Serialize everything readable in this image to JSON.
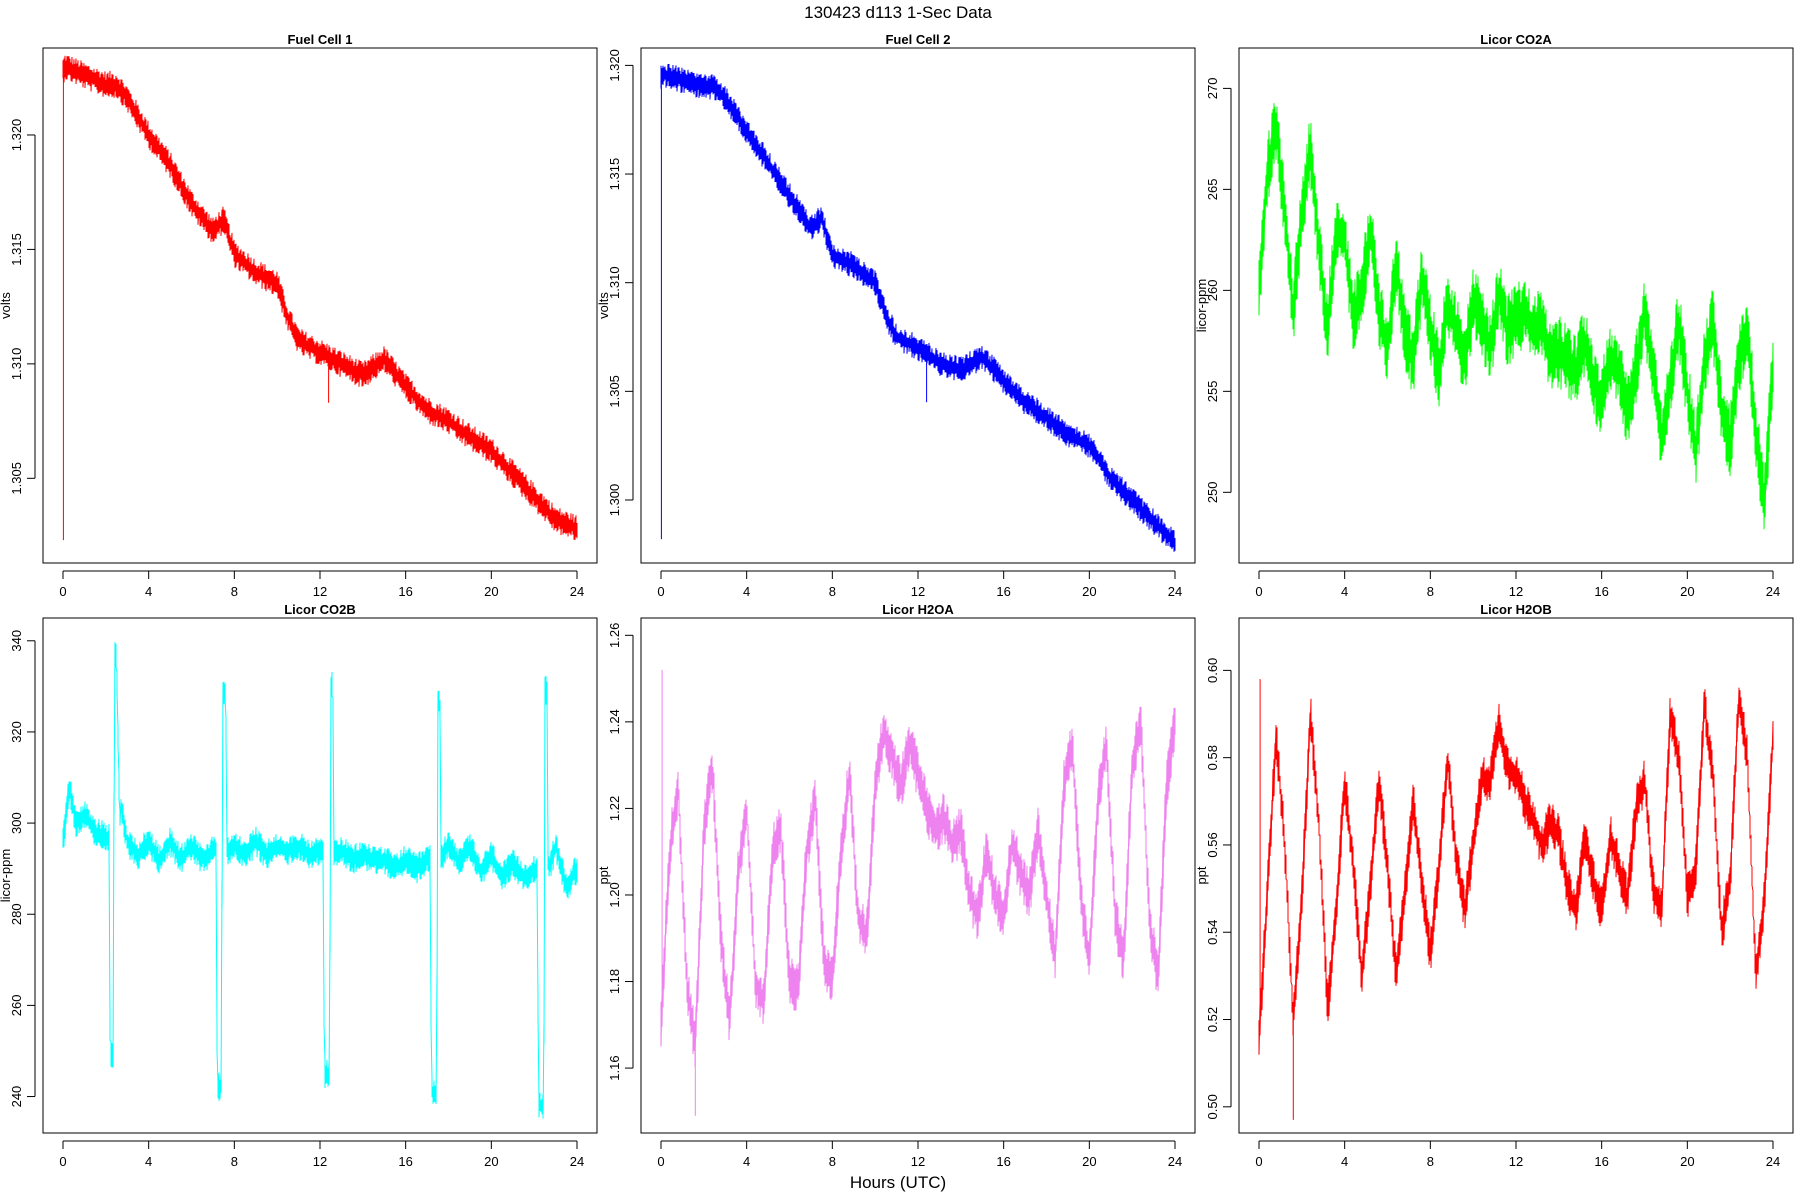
{
  "figure": {
    "title": "130423   d113   1-Sec Data",
    "xlabel": "Hours (UTC)"
  },
  "chart_data": [
    {
      "type": "line",
      "title": "Fuel Cell 1",
      "ylabel": "volts",
      "color": "#ff0000",
      "xlim": [
        0,
        24
      ],
      "ylim": [
        1.3013,
        1.3238
      ],
      "xticks": [
        0,
        4,
        8,
        12,
        16,
        20,
        24
      ],
      "yticks": [
        1.305,
        1.31,
        1.315,
        1.32
      ],
      "ytick_labels": [
        "1.305",
        "1.310",
        "1.315",
        "1.320"
      ],
      "noise": 0.0004,
      "spikes": [
        {
          "x": 0.02,
          "y": 1.3023
        },
        {
          "x": 12.4,
          "y": 1.3083
        }
      ],
      "x": [
        0,
        0.1,
        1,
        2,
        2.5,
        3,
        4,
        5,
        6,
        7,
        7.5,
        8,
        9,
        10,
        10.5,
        11,
        12,
        13,
        14,
        15,
        16,
        17,
        18,
        19,
        20,
        21,
        22,
        23,
        24
      ],
      "y": [
        1.3228,
        1.323,
        1.3226,
        1.3222,
        1.3222,
        1.3216,
        1.32,
        1.3187,
        1.317,
        1.3158,
        1.3163,
        1.3148,
        1.314,
        1.3135,
        1.312,
        1.311,
        1.3105,
        1.31,
        1.3095,
        1.3102,
        1.309,
        1.308,
        1.3075,
        1.3068,
        1.3062,
        1.3052,
        1.3042,
        1.3032,
        1.3028
      ]
    },
    {
      "type": "line",
      "title": "Fuel Cell 2",
      "ylabel": "volts",
      "color": "#0000ff",
      "xlim": [
        0,
        24
      ],
      "ylim": [
        1.2971,
        1.3208
      ],
      "xticks": [
        0,
        4,
        8,
        12,
        16,
        20,
        24
      ],
      "yticks": [
        1.3,
        1.305,
        1.31,
        1.315,
        1.32
      ],
      "ytick_labels": [
        "1.300",
        "1.305",
        "1.310",
        "1.315",
        "1.320"
      ],
      "noise": 0.0004,
      "spikes": [
        {
          "x": 0.02,
          "y": 1.2982
        },
        {
          "x": 12.4,
          "y": 1.3045
        }
      ],
      "x": [
        0,
        0.1,
        1,
        2,
        2.5,
        3,
        4,
        5,
        6,
        7,
        7.5,
        8,
        9,
        10,
        10.5,
        11,
        12,
        13,
        14,
        15,
        16,
        17,
        18,
        19,
        20,
        20.5,
        21,
        22,
        23,
        24
      ],
      "y": [
        1.3195,
        1.3196,
        1.3193,
        1.319,
        1.319,
        1.3185,
        1.317,
        1.3155,
        1.314,
        1.3125,
        1.313,
        1.3112,
        1.3108,
        1.31,
        1.3085,
        1.3075,
        1.307,
        1.3063,
        1.306,
        1.3066,
        1.3055,
        1.3045,
        1.3038,
        1.303,
        1.3025,
        1.3018,
        1.301,
        1.3,
        1.299,
        1.298
      ]
    },
    {
      "type": "line",
      "title": "Licor CO2A",
      "ylabel": "licor-ppm",
      "color": "#00ff00",
      "xlim": [
        0,
        24
      ],
      "ylim": [
        246.5,
        272.0
      ],
      "xticks": [
        0,
        4,
        8,
        12,
        16,
        20,
        24
      ],
      "yticks": [
        250,
        255,
        260,
        265,
        270
      ],
      "ytick_labels": [
        "250",
        "255",
        "260",
        "265",
        "270"
      ],
      "noise": 1.2,
      "spikes": [],
      "x": [
        0.0,
        0.4,
        0.8,
        1.2,
        1.6,
        2.0,
        2.4,
        2.8,
        3.2,
        3.6,
        4.0,
        4.4,
        4.8,
        5.2,
        5.6,
        6.0,
        6.4,
        6.8,
        7.2,
        7.6,
        8.0,
        8.4,
        8.8,
        9.2,
        9.6,
        10.0,
        10.4,
        10.8,
        11.2,
        11.6,
        12.0,
        12.4,
        12.8,
        13.2,
        13.6,
        14.0,
        14.4,
        14.8,
        15.2,
        15.6,
        16.0,
        16.4,
        16.8,
        17.2,
        17.6,
        18.0,
        18.4,
        18.8,
        19.2,
        19.6,
        20.0,
        20.4,
        20.8,
        21.2,
        21.6,
        22.0,
        22.4,
        22.8,
        23.2,
        23.6,
        24.0
      ],
      "y": [
        260.0,
        266.0,
        268.0,
        264.0,
        259.0,
        264.0,
        267.0,
        262.0,
        258.0,
        263.0,
        262.5,
        258.5,
        260.0,
        263.0,
        259.0,
        257.0,
        261.5,
        258.0,
        256.5,
        260.5,
        258.0,
        256.0,
        259.5,
        258.0,
        256.5,
        259.5,
        258.5,
        257.0,
        260.0,
        258.0,
        258.5,
        259.0,
        258.0,
        258.5,
        256.5,
        257.0,
        256.5,
        256.0,
        257.5,
        255.5,
        254.5,
        256.5,
        256.0,
        254.0,
        256.0,
        259.0,
        256.0,
        252.5,
        255.5,
        258.5,
        255.0,
        252.0,
        256.5,
        258.5,
        254.0,
        252.5,
        256.5,
        258.0,
        253.0,
        249.5,
        256.5
      ]
    },
    {
      "type": "line",
      "title": "Licor CO2B",
      "ylabel": "licor-ppm",
      "color": "#00ffff",
      "xlim": [
        0,
        24
      ],
      "ylim": [
        232.0,
        345.0
      ],
      "xticks": [
        0,
        4,
        8,
        12,
        16,
        20,
        24
      ],
      "yticks": [
        240,
        260,
        280,
        300,
        320,
        340
      ],
      "ytick_labels": [
        "240",
        "260",
        "280",
        "300",
        "320",
        "340"
      ],
      "noise": 2.2,
      "spikes": [],
      "x": [
        0.0,
        0.3,
        0.6,
        1.0,
        1.5,
        2.0,
        2.15,
        2.2,
        2.35,
        2.4,
        2.5,
        2.65,
        2.7,
        3.0,
        3.5,
        4.0,
        4.5,
        5.0,
        5.5,
        6.0,
        6.5,
        7.0,
        7.15,
        7.2,
        7.4,
        7.45,
        7.6,
        7.65,
        8.0,
        8.5,
        9.0,
        9.5,
        10.0,
        10.5,
        11.0,
        11.5,
        12.0,
        12.15,
        12.2,
        12.45,
        12.5,
        12.6,
        12.65,
        13.0,
        13.5,
        14.0,
        14.5,
        15.0,
        15.5,
        16.0,
        16.5,
        17.0,
        17.15,
        17.2,
        17.45,
        17.5,
        17.6,
        17.65,
        18.0,
        18.5,
        19.0,
        19.5,
        20.0,
        20.5,
        21.0,
        21.5,
        22.0,
        22.15,
        22.2,
        22.45,
        22.5,
        22.6,
        22.65,
        23.0,
        23.5,
        24.0
      ],
      "y": [
        296,
        308,
        300,
        302,
        298,
        297,
        297,
        249,
        249,
        337,
        336,
        300,
        304,
        296,
        293,
        296,
        292,
        296,
        292,
        295,
        292,
        294,
        294,
        242,
        242,
        329,
        329,
        294,
        295,
        293,
        296,
        293,
        295,
        294,
        295,
        293,
        294,
        294,
        245,
        245,
        330,
        330,
        293,
        294,
        292,
        293,
        292,
        292,
        290,
        292,
        290,
        292,
        292,
        241,
        241,
        327,
        327,
        292,
        296,
        291,
        295,
        289,
        293,
        288,
        291,
        288,
        290,
        290,
        238,
        238,
        329,
        329,
        289,
        295,
        286,
        290
      ]
    },
    {
      "type": "line",
      "title": "Licor H2OA",
      "ylabel": "ppt",
      "color": "#ee82ee",
      "xlim": [
        0,
        24
      ],
      "ylim": [
        1.145,
        1.264
      ],
      "xticks": [
        0,
        4,
        8,
        12,
        16,
        20,
        24
      ],
      "yticks": [
        1.16,
        1.18,
        1.2,
        1.22,
        1.24,
        1.26
      ],
      "ytick_labels": [
        "1.16",
        "1.18",
        "1.20",
        "1.22",
        "1.24",
        "1.26"
      ],
      "noise": 0.004,
      "spikes": [
        {
          "x": 0.05,
          "y": 1.252
        },
        {
          "x": 1.6,
          "y": 1.149
        }
      ],
      "x": [
        0.0,
        0.4,
        0.8,
        1.2,
        1.6,
        2.0,
        2.4,
        2.8,
        3.2,
        3.6,
        4.0,
        4.4,
        4.8,
        5.2,
        5.6,
        6.0,
        6.4,
        6.8,
        7.2,
        7.6,
        8.0,
        8.4,
        8.8,
        9.2,
        9.6,
        10.0,
        10.4,
        10.8,
        11.2,
        11.6,
        12.0,
        12.4,
        12.8,
        13.2,
        13.6,
        14.0,
        14.4,
        14.8,
        15.2,
        15.6,
        16.0,
        16.4,
        16.8,
        17.2,
        17.6,
        18.0,
        18.4,
        18.8,
        19.2,
        19.6,
        20.0,
        20.4,
        20.8,
        21.2,
        21.6,
        22.0,
        22.4,
        22.8,
        23.2,
        23.6,
        24.0
      ],
      "y": [
        1.17,
        1.21,
        1.225,
        1.18,
        1.165,
        1.215,
        1.23,
        1.19,
        1.17,
        1.205,
        1.22,
        1.18,
        1.175,
        1.21,
        1.215,
        1.18,
        1.178,
        1.21,
        1.222,
        1.185,
        1.18,
        1.21,
        1.228,
        1.195,
        1.19,
        1.225,
        1.238,
        1.232,
        1.225,
        1.235,
        1.228,
        1.22,
        1.215,
        1.218,
        1.212,
        1.215,
        1.2,
        1.195,
        1.21,
        1.2,
        1.195,
        1.212,
        1.205,
        1.2,
        1.215,
        1.2,
        1.185,
        1.225,
        1.235,
        1.2,
        1.185,
        1.222,
        1.235,
        1.195,
        1.185,
        1.23,
        1.24,
        1.195,
        1.18,
        1.225,
        1.24
      ]
    },
    {
      "type": "line",
      "title": "Licor H2OB",
      "ylabel": "ppt",
      "color": "#ff0000",
      "xlim": [
        0,
        24
      ],
      "ylim": [
        0.494,
        0.612
      ],
      "xticks": [
        0,
        4,
        8,
        12,
        16,
        20,
        24
      ],
      "yticks": [
        0.5,
        0.52,
        0.54,
        0.56,
        0.58,
        0.6
      ],
      "ytick_labels": [
        "0.50",
        "0.52",
        "0.54",
        "0.56",
        "0.58",
        "0.60"
      ],
      "noise": 0.0035,
      "spikes": [
        {
          "x": 0.05,
          "y": 0.598
        },
        {
          "x": 1.6,
          "y": 0.497
        }
      ],
      "x": [
        0.0,
        0.4,
        0.8,
        1.2,
        1.6,
        2.0,
        2.4,
        2.8,
        3.2,
        3.6,
        4.0,
        4.4,
        4.8,
        5.2,
        5.6,
        6.0,
        6.4,
        6.8,
        7.2,
        7.6,
        8.0,
        8.4,
        8.8,
        9.2,
        9.6,
        10.0,
        10.4,
        10.8,
        11.2,
        11.6,
        12.0,
        12.4,
        12.8,
        13.2,
        13.6,
        14.0,
        14.4,
        14.8,
        15.2,
        15.6,
        16.0,
        16.4,
        16.8,
        17.2,
        17.6,
        18.0,
        18.4,
        18.8,
        19.2,
        19.6,
        20.0,
        20.4,
        20.8,
        21.2,
        21.6,
        22.0,
        22.4,
        22.8,
        23.2,
        23.6,
        24.0
      ],
      "y": [
        0.515,
        0.55,
        0.585,
        0.56,
        0.52,
        0.548,
        0.59,
        0.565,
        0.522,
        0.545,
        0.575,
        0.555,
        0.53,
        0.55,
        0.575,
        0.555,
        0.53,
        0.548,
        0.57,
        0.552,
        0.535,
        0.555,
        0.58,
        0.558,
        0.545,
        0.56,
        0.575,
        0.575,
        0.588,
        0.578,
        0.576,
        0.57,
        0.566,
        0.56,
        0.565,
        0.562,
        0.55,
        0.545,
        0.562,
        0.552,
        0.545,
        0.562,
        0.555,
        0.548,
        0.568,
        0.575,
        0.55,
        0.545,
        0.59,
        0.58,
        0.548,
        0.555,
        0.592,
        0.575,
        0.54,
        0.552,
        0.594,
        0.58,
        0.53,
        0.548,
        0.585
      ]
    }
  ]
}
